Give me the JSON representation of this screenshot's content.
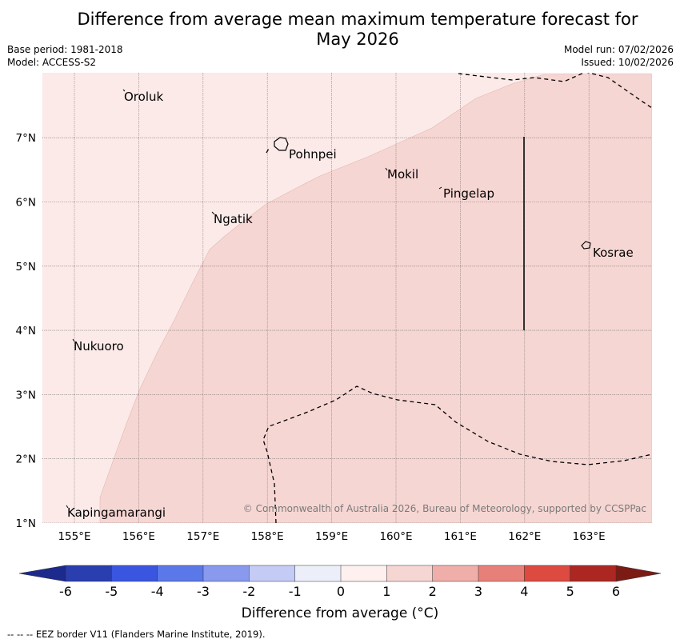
{
  "title": {
    "line1": "Difference from average mean maximum temperature forecast for",
    "line2": "May 2026"
  },
  "meta": {
    "base_period": "Base period: 1981-2018",
    "model": "Model: ACCESS-S2",
    "model_run": "Model run: 07/02/2026",
    "issued": "Issued: 10/02/2026"
  },
  "map": {
    "lon_ticks": [
      "155°E",
      "156°E",
      "157°E",
      "158°E",
      "159°E",
      "160°E",
      "161°E",
      "162°E",
      "163°E"
    ],
    "lat_ticks": [
      "1°N",
      "2°N",
      "3°N",
      "4°N",
      "5°N",
      "6°N",
      "7°N"
    ],
    "places": [
      "Oroluk",
      "Pohnpei",
      "Mokil",
      "Pingelap",
      "Ngatik",
      "Kosrae",
      "Nukuoro",
      "Kapingamarangi"
    ],
    "copyright": "© Commonwealth of Australia 2026, Bureau of Meteorology, supported by CCSPPac",
    "colors": {
      "band_0_1": "#fbeae8",
      "band_1_2": "#f6d6d3"
    }
  },
  "colorbar": {
    "ticks": [
      "-6",
      "-5",
      "-4",
      "-3",
      "-2",
      "-1",
      "0",
      "1",
      "2",
      "3",
      "4",
      "5",
      "6"
    ],
    "colors": [
      "#2a3eaf",
      "#3a56e0",
      "#5b78e8",
      "#8899ee",
      "#c4cbf5",
      "#eceef9",
      "#fdf0ee",
      "#f6d6d3",
      "#efaeaa",
      "#e8807a",
      "#dc4a40",
      "#ad2722"
    ],
    "under_color": "#1b2a8c",
    "over_color": "#7c1a14",
    "label": "Difference from average (°C)"
  },
  "footer": "--  --  -- EEZ border V11 (Flanders Marine Institute, 2019)."
}
